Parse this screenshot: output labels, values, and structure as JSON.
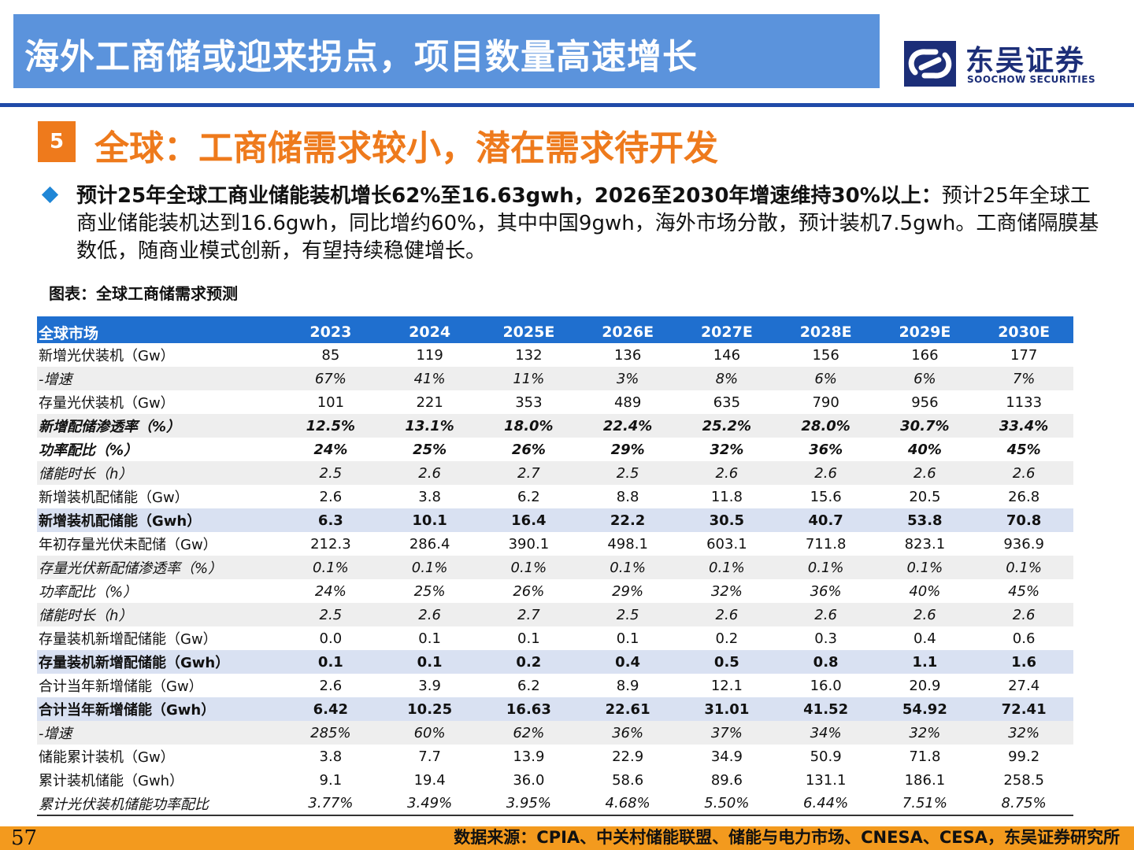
{
  "header": {
    "title": "海外工商储或迎来拐点，项目数量高速增长",
    "logo_cn": "东吴证券",
    "logo_en": "SOOCHOW SECURITIES",
    "brand_color": "#1c2e78"
  },
  "section": {
    "number": "5",
    "title": "全球：工商储需求较小，潜在需求待开发",
    "accent_color": "#ee7a1c"
  },
  "bullet": {
    "bold": "预计25年全球工商业储能装机增长62%至16.63gwh，2026至2030年增速维持30%以上：",
    "text": "预计25年全球工商业储能装机达到16.6gwh，同比增约60%，其中中国9gwh，海外市场分散，预计装机7.5gwh。工商储隔膜基数低，随商业模式创新，有望持续稳健增长。"
  },
  "figure": {
    "title": "图表：全球工商储需求预测"
  },
  "table": {
    "headers": [
      "全球市场",
      "2023",
      "2024",
      "2025E",
      "2026E",
      "2027E",
      "2028E",
      "2029E",
      "2030E"
    ],
    "rows": [
      {
        "style": "",
        "cells": [
          "新增光伏装机（Gw）",
          "85",
          "119",
          "132",
          "136",
          "146",
          "156",
          "166",
          "177"
        ]
      },
      {
        "style": "shade ital",
        "cells": [
          "-增速",
          "67%",
          "41%",
          "11%",
          "3%",
          "8%",
          "6%",
          "6%",
          "7%"
        ]
      },
      {
        "style": "",
        "cells": [
          "存量光伏装机（Gw）",
          "101",
          "221",
          "353",
          "489",
          "635",
          "790",
          "956",
          "1133"
        ]
      },
      {
        "style": "shade bold ital",
        "cells": [
          "新增配储渗透率（%）",
          "12.5%",
          "13.1%",
          "18.0%",
          "22.4%",
          "25.2%",
          "28.0%",
          "30.7%",
          "33.4%"
        ]
      },
      {
        "style": "bold ital",
        "cells": [
          "功率配比（%）",
          "24%",
          "25%",
          "26%",
          "29%",
          "32%",
          "36%",
          "40%",
          "45%"
        ]
      },
      {
        "style": "shade ital",
        "cells": [
          "储能时长（h）",
          "2.5",
          "2.6",
          "2.7",
          "2.5",
          "2.6",
          "2.6",
          "2.6",
          "2.6"
        ]
      },
      {
        "style": "",
        "cells": [
          "新增装机配储能（Gw）",
          "2.6",
          "3.8",
          "6.2",
          "8.8",
          "11.8",
          "15.6",
          "20.5",
          "26.8"
        ]
      },
      {
        "style": "blue bold",
        "cells": [
          "新增装机配储能（Gwh）",
          "6.3",
          "10.1",
          "16.4",
          "22.2",
          "30.5",
          "40.7",
          "53.8",
          "70.8"
        ]
      },
      {
        "style": "",
        "cells": [
          "年初存量光伏未配储（Gw）",
          "212.3",
          "286.4",
          "390.1",
          "498.1",
          "603.1",
          "711.8",
          "823.1",
          "936.9"
        ]
      },
      {
        "style": "shade ital",
        "cells": [
          "存量光伏新配储渗透率（%）",
          "0.1%",
          "0.1%",
          "0.1%",
          "0.1%",
          "0.1%",
          "0.1%",
          "0.1%",
          "0.1%"
        ]
      },
      {
        "style": "ital",
        "cells": [
          "功率配比（%）",
          "24%",
          "25%",
          "26%",
          "29%",
          "32%",
          "36%",
          "40%",
          "45%"
        ]
      },
      {
        "style": "shade ital",
        "cells": [
          "储能时长（h）",
          "2.5",
          "2.6",
          "2.7",
          "2.5",
          "2.6",
          "2.6",
          "2.6",
          "2.6"
        ]
      },
      {
        "style": "",
        "cells": [
          "存量装机新增配储能（Gw）",
          "0.0",
          "0.1",
          "0.1",
          "0.1",
          "0.2",
          "0.3",
          "0.4",
          "0.6"
        ]
      },
      {
        "style": "blue bold",
        "cells": [
          "存量装机新增配储能（Gwh）",
          "0.1",
          "0.1",
          "0.2",
          "0.4",
          "0.5",
          "0.8",
          "1.1",
          "1.6"
        ]
      },
      {
        "style": "",
        "cells": [
          "合计当年新增储能（Gw）",
          "2.6",
          "3.9",
          "6.2",
          "8.9",
          "12.1",
          "16.0",
          "20.9",
          "27.4"
        ]
      },
      {
        "style": "blue bold",
        "cells": [
          "合计当年新增储能（Gwh）",
          "6.42",
          "10.25",
          "16.63",
          "22.61",
          "31.01",
          "41.52",
          "54.92",
          "72.41"
        ]
      },
      {
        "style": "shade ital",
        "cells": [
          "-增速",
          "285%",
          "60%",
          "62%",
          "36%",
          "37%",
          "34%",
          "32%",
          "32%"
        ]
      },
      {
        "style": "",
        "cells": [
          "储能累计装机（Gw）",
          "3.8",
          "7.7",
          "13.9",
          "22.9",
          "34.9",
          "50.9",
          "71.8",
          "99.2"
        ]
      },
      {
        "style": "",
        "cells": [
          "累计装机储能（Gwh）",
          "9.1",
          "19.4",
          "36.0",
          "58.6",
          "89.6",
          "131.1",
          "186.1",
          "258.5"
        ]
      },
      {
        "style": "ital lastrow",
        "cells": [
          "累计光伏装机储能功率配比",
          "3.77%",
          "3.49%",
          "3.95%",
          "4.68%",
          "5.50%",
          "6.44%",
          "7.51%",
          "8.75%"
        ]
      }
    ]
  },
  "footer": {
    "page": "57",
    "source": "数据来源：CPIA、中关村储能联盟、储能与电力市场、CNESA、CESA，东吴证券研究所"
  }
}
